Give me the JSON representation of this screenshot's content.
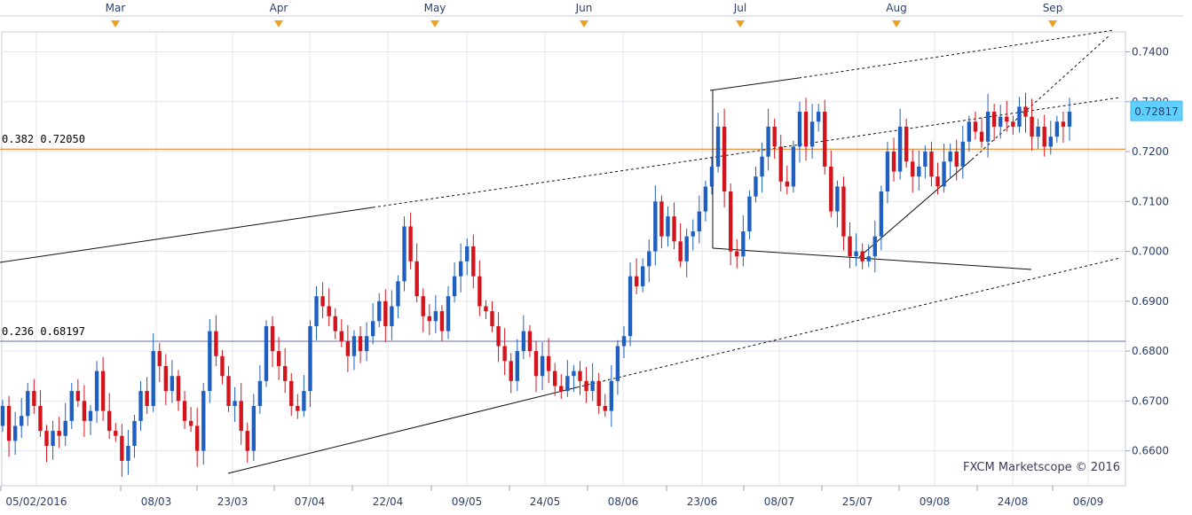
{
  "chart_data": {
    "type": "candlestick",
    "title": "",
    "watermark": "FXCM Marketscope © 2016",
    "months": [
      "Mar",
      "Apr",
      "May",
      "Jun",
      "Jul",
      "Aug",
      "Sep"
    ],
    "x_tick_labels": [
      "05/02/2016",
      "08/03",
      "23/03",
      "07/04",
      "22/04",
      "09/05",
      "24/05",
      "08/06",
      "23/06",
      "08/07",
      "25/07",
      "09/08",
      "24/08",
      "06/09"
    ],
    "y_tick_labels": [
      "0.6600",
      "0.6700",
      "0.6800",
      "0.6900",
      "0.7000",
      "0.7100",
      "0.7200",
      "0.7300",
      "0.7400"
    ],
    "ylim": [
      0.653,
      0.744
    ],
    "current_price": "0.72817",
    "levels": [
      {
        "label": "0.382 0.72050",
        "value": 0.7205,
        "color": "#e07a10"
      },
      {
        "label": "0.236 0.68197",
        "value": 0.68197,
        "color": "#6a6aa8"
      }
    ],
    "grid": true,
    "colors": {
      "up": "#1f5fbf",
      "down": "#d4141c",
      "price_box": "#5fcfff",
      "month_marker": "#f0a020"
    },
    "closes": [
      0.669,
      0.662,
      0.665,
      0.667,
      0.672,
      0.669,
      0.664,
      0.661,
      0.664,
      0.663,
      0.666,
      0.672,
      0.67,
      0.666,
      0.668,
      0.676,
      0.668,
      0.664,
      0.663,
      0.658,
      0.661,
      0.666,
      0.672,
      0.669,
      0.68,
      0.677,
      0.672,
      0.675,
      0.67,
      0.666,
      0.665,
      0.66,
      0.672,
      0.684,
      0.679,
      0.675,
      0.669,
      0.67,
      0.664,
      0.66,
      0.669,
      0.674,
      0.685,
      0.68,
      0.677,
      0.674,
      0.669,
      0.668,
      0.672,
      0.685,
      0.691,
      0.689,
      0.687,
      0.684,
      0.682,
      0.679,
      0.683,
      0.68,
      0.683,
      0.686,
      0.69,
      0.685,
      0.689,
      0.694,
      0.705,
      0.698,
      0.691,
      0.687,
      0.686,
      0.688,
      0.684,
      0.691,
      0.695,
      0.698,
      0.701,
      0.695,
      0.689,
      0.688,
      0.685,
      0.681,
      0.678,
      0.674,
      0.68,
      0.684,
      0.68,
      0.675,
      0.679,
      0.676,
      0.673,
      0.672,
      0.675,
      0.676,
      0.674,
      0.672,
      0.674,
      0.669,
      0.668,
      0.674,
      0.681,
      0.683,
      0.695,
      0.693,
      0.697,
      0.7,
      0.71,
      0.703,
      0.707,
      0.702,
      0.698,
      0.703,
      0.704,
      0.708,
      0.713,
      0.717,
      0.725,
      0.712,
      0.7,
      0.699,
      0.704,
      0.711,
      0.715,
      0.719,
      0.725,
      0.721,
      0.714,
      0.713,
      0.721,
      0.728,
      0.721,
      0.726,
      0.728,
      0.717,
      0.708,
      0.713,
      0.703,
      0.699,
      0.7,
      0.698,
      0.699,
      0.703,
      0.712,
      0.72,
      0.716,
      0.725,
      0.718,
      0.715,
      0.717,
      0.72,
      0.715,
      0.713,
      0.718,
      0.72,
      0.717,
      0.722,
      0.726,
      0.724,
      0.722,
      0.728,
      0.725,
      0.727,
      0.726,
      0.725,
      0.729,
      0.727,
      0.723,
      0.725,
      0.721,
      0.723,
      0.726,
      0.725,
      0.728
    ]
  }
}
